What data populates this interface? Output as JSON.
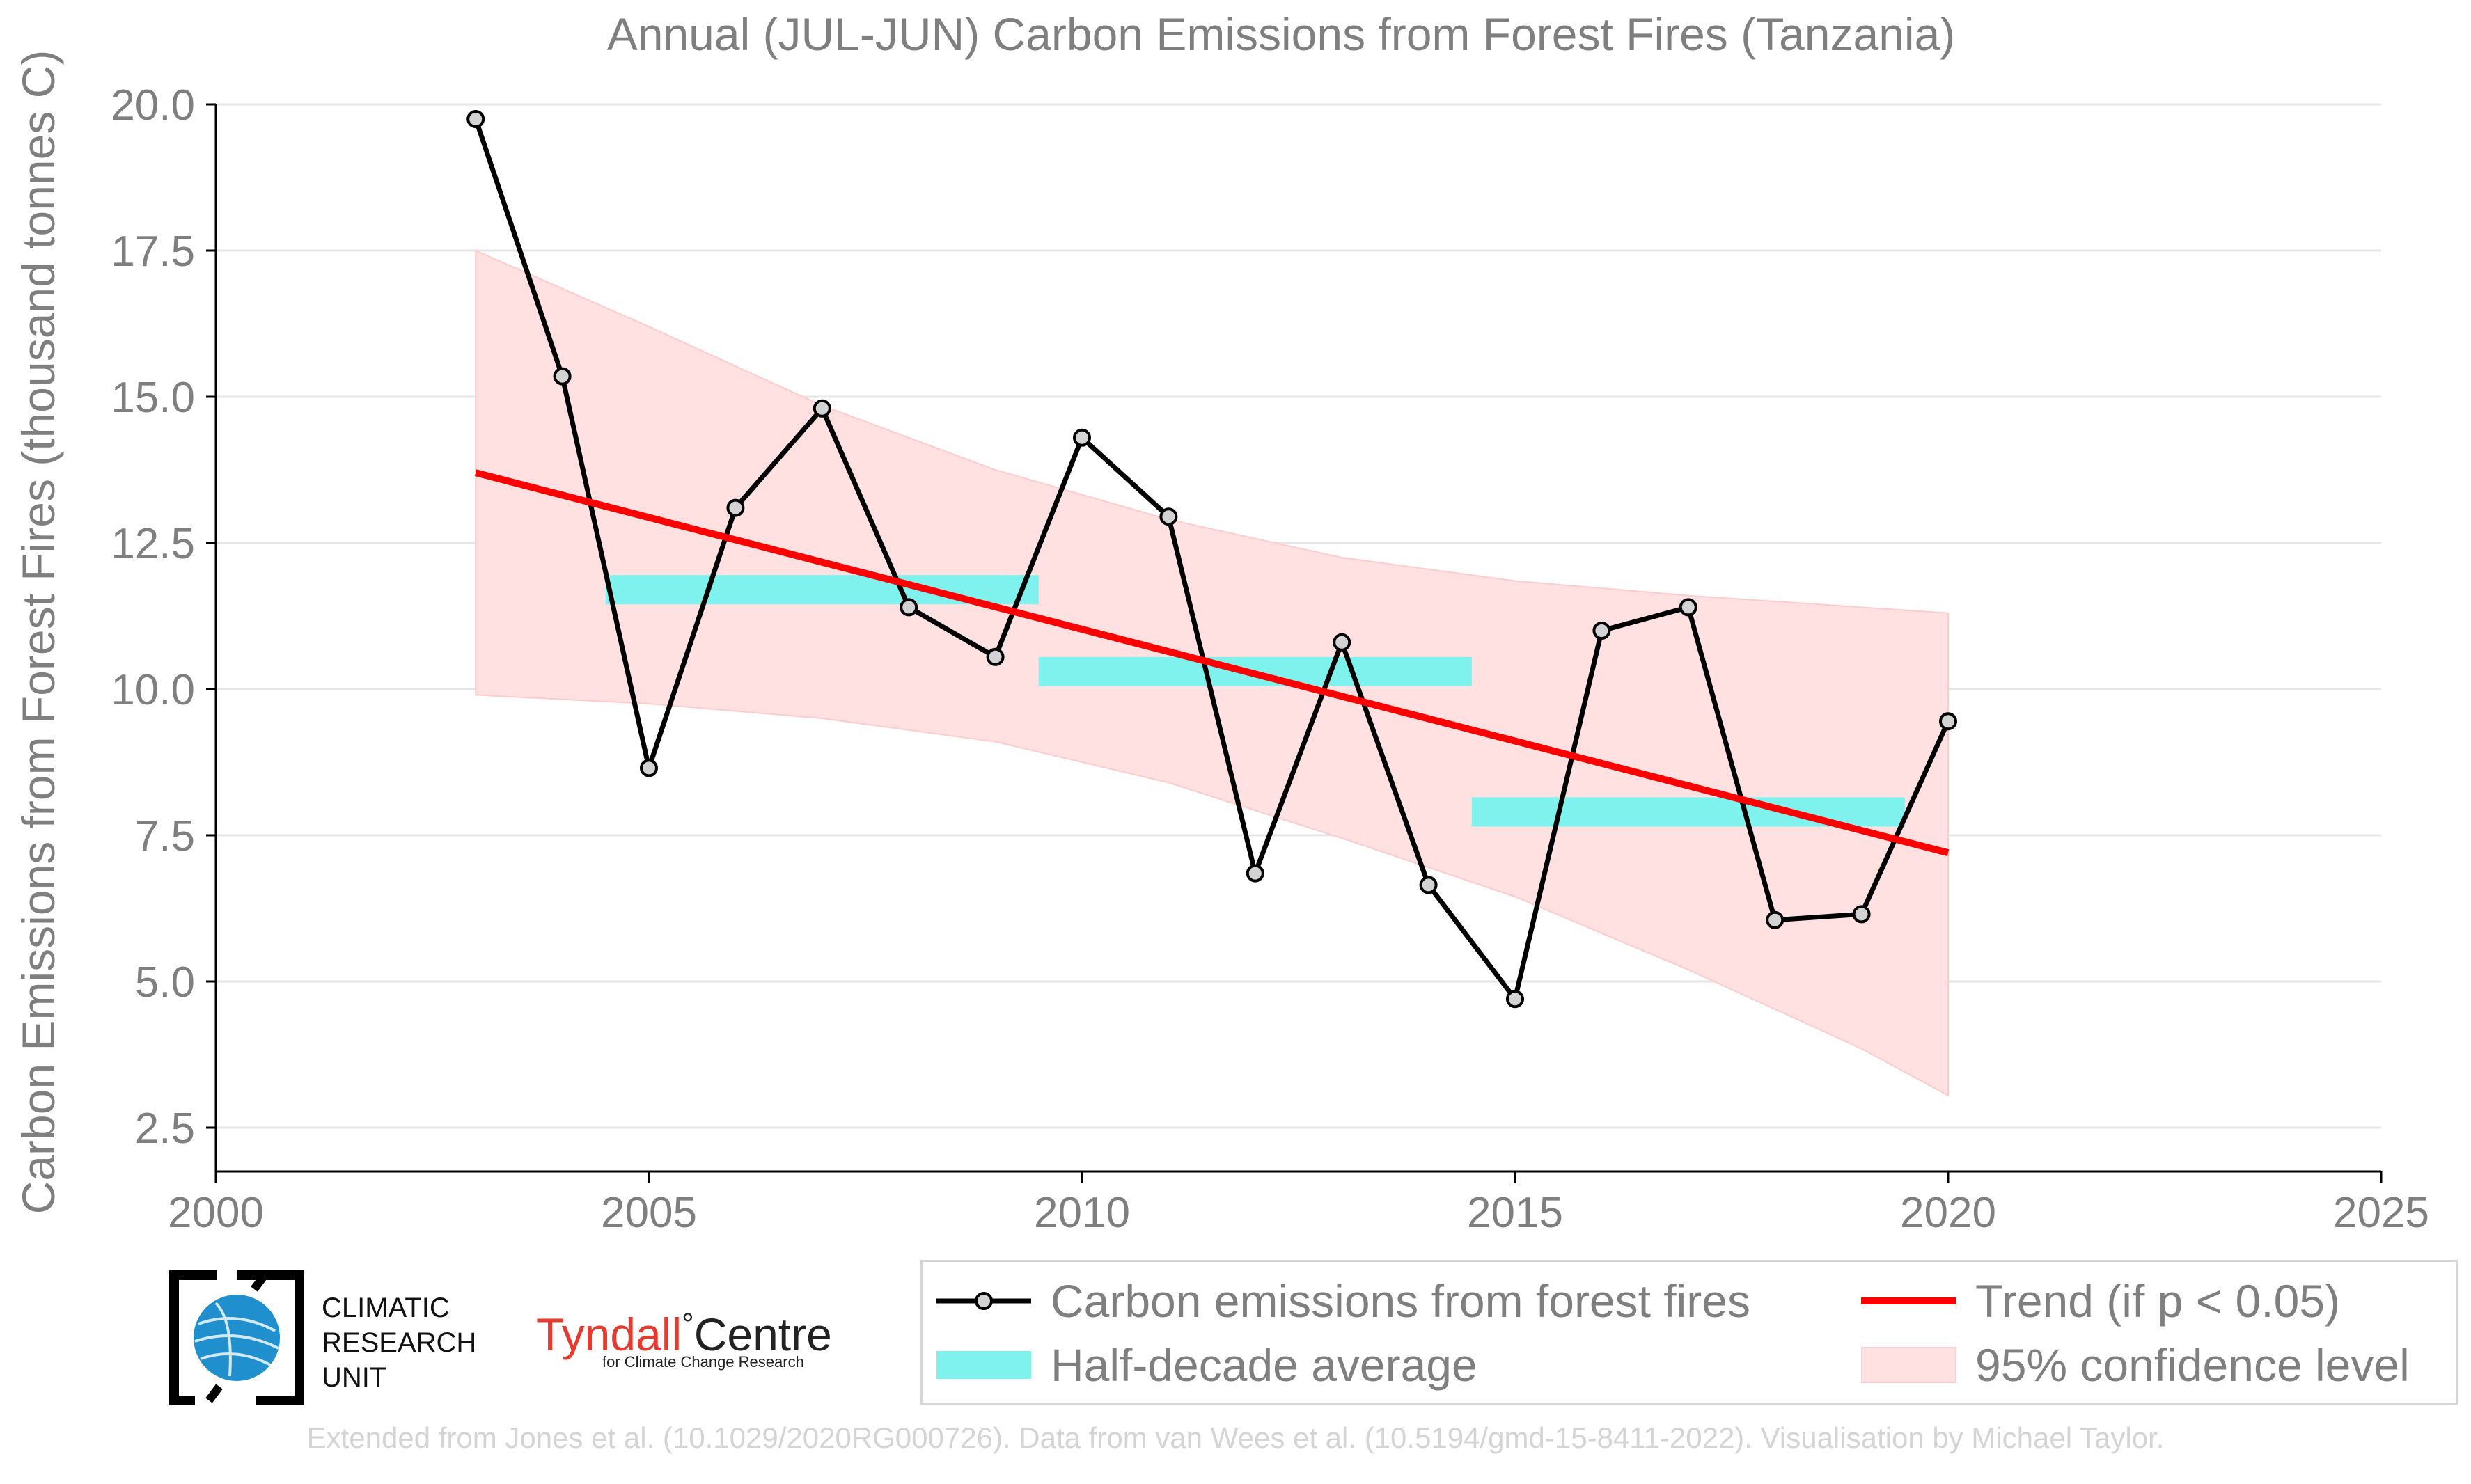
{
  "colors": {
    "series": "#000000",
    "marker_fill": "#d3d3d3",
    "trend": "#ff0000",
    "half_decade": "#7ff2ee",
    "confidence": "#ffe1e1",
    "text": "#7f7f7f",
    "grid": "#e5e5e5",
    "footer": "#d4d4d4",
    "tyndall_red": "#e63a2e",
    "cru_blue": "#1f8fce"
  },
  "chart_data": {
    "type": "line",
    "title": "Annual (JUL-JUN) Carbon Emissions from Forest Fires (Tanzania)",
    "ylabel": "Carbon Emissions from Forest Fires (thousand tonnes C)",
    "xlabel": "",
    "xlim": [
      2000,
      2025
    ],
    "ylim": [
      2.5,
      20.0
    ],
    "x_ticks": [
      2000,
      2005,
      2010,
      2015,
      2020,
      2025
    ],
    "y_ticks": [
      "2.5",
      "5.0",
      "7.5",
      "10.0",
      "12.5",
      "15.0",
      "17.5",
      "20.0"
    ],
    "grid": "horizontal",
    "legend_position": "bottom-right, below plot",
    "series": [
      {
        "name": "Carbon emissions from forest fires",
        "x": [
          2003,
          2004,
          2005,
          2006,
          2007,
          2008,
          2009,
          2010,
          2011,
          2012,
          2013,
          2014,
          2015,
          2016,
          2017,
          2018,
          2019,
          2020
        ],
        "values": [
          19.75,
          15.35,
          8.65,
          13.1,
          14.8,
          11.4,
          10.55,
          14.3,
          12.95,
          6.85,
          10.8,
          6.65,
          4.7,
          11.0,
          11.4,
          6.05,
          6.15,
          9.45
        ]
      }
    ],
    "half_decade_average": {
      "name": "Half-decade average",
      "segments": [
        {
          "x_start": 2004.5,
          "x_end": 2009.5,
          "value": 11.7
        },
        {
          "x_start": 2009.5,
          "x_end": 2014.5,
          "value": 10.3
        },
        {
          "x_start": 2014.5,
          "x_end": 2019.5,
          "value": 7.9
        }
      ]
    },
    "trend": {
      "name": "Trend (if p < 0.05)",
      "x": [
        2003,
        2020
      ],
      "values": [
        13.7,
        7.2
      ]
    },
    "confidence": {
      "name": "95% confidence level",
      "x": [
        2003,
        2005,
        2007,
        2009,
        2011,
        2013,
        2015,
        2017,
        2019,
        2020
      ],
      "upper": [
        17.5,
        16.2,
        14.85,
        13.75,
        12.9,
        12.25,
        11.85,
        11.6,
        11.4,
        11.3
      ],
      "lower": [
        9.9,
        9.75,
        9.5,
        9.1,
        8.4,
        7.45,
        6.45,
        5.2,
        3.85,
        3.05
      ]
    }
  },
  "legend": {
    "series_label": "Carbon emissions from forest fires",
    "half_decade_label": "Half-decade average",
    "trend_label": "Trend (if p < 0.05)",
    "confidence_label": "95% confidence level"
  },
  "logos": {
    "cru_line1": "CLIMATIC",
    "cru_line2": "RESEARCH",
    "cru_line3": "UNIT",
    "tyndall_name": "Tyndall",
    "tyndall_degree": "°",
    "tyndall_centre": "Centre",
    "tyndall_sub": "for Climate Change Research"
  },
  "footer": "Extended from Jones et al. (10.1029/2020RG000726). Data from van Wees et al. (10.5194/gmd-15-8411-2022). Visualisation by Michael Taylor."
}
